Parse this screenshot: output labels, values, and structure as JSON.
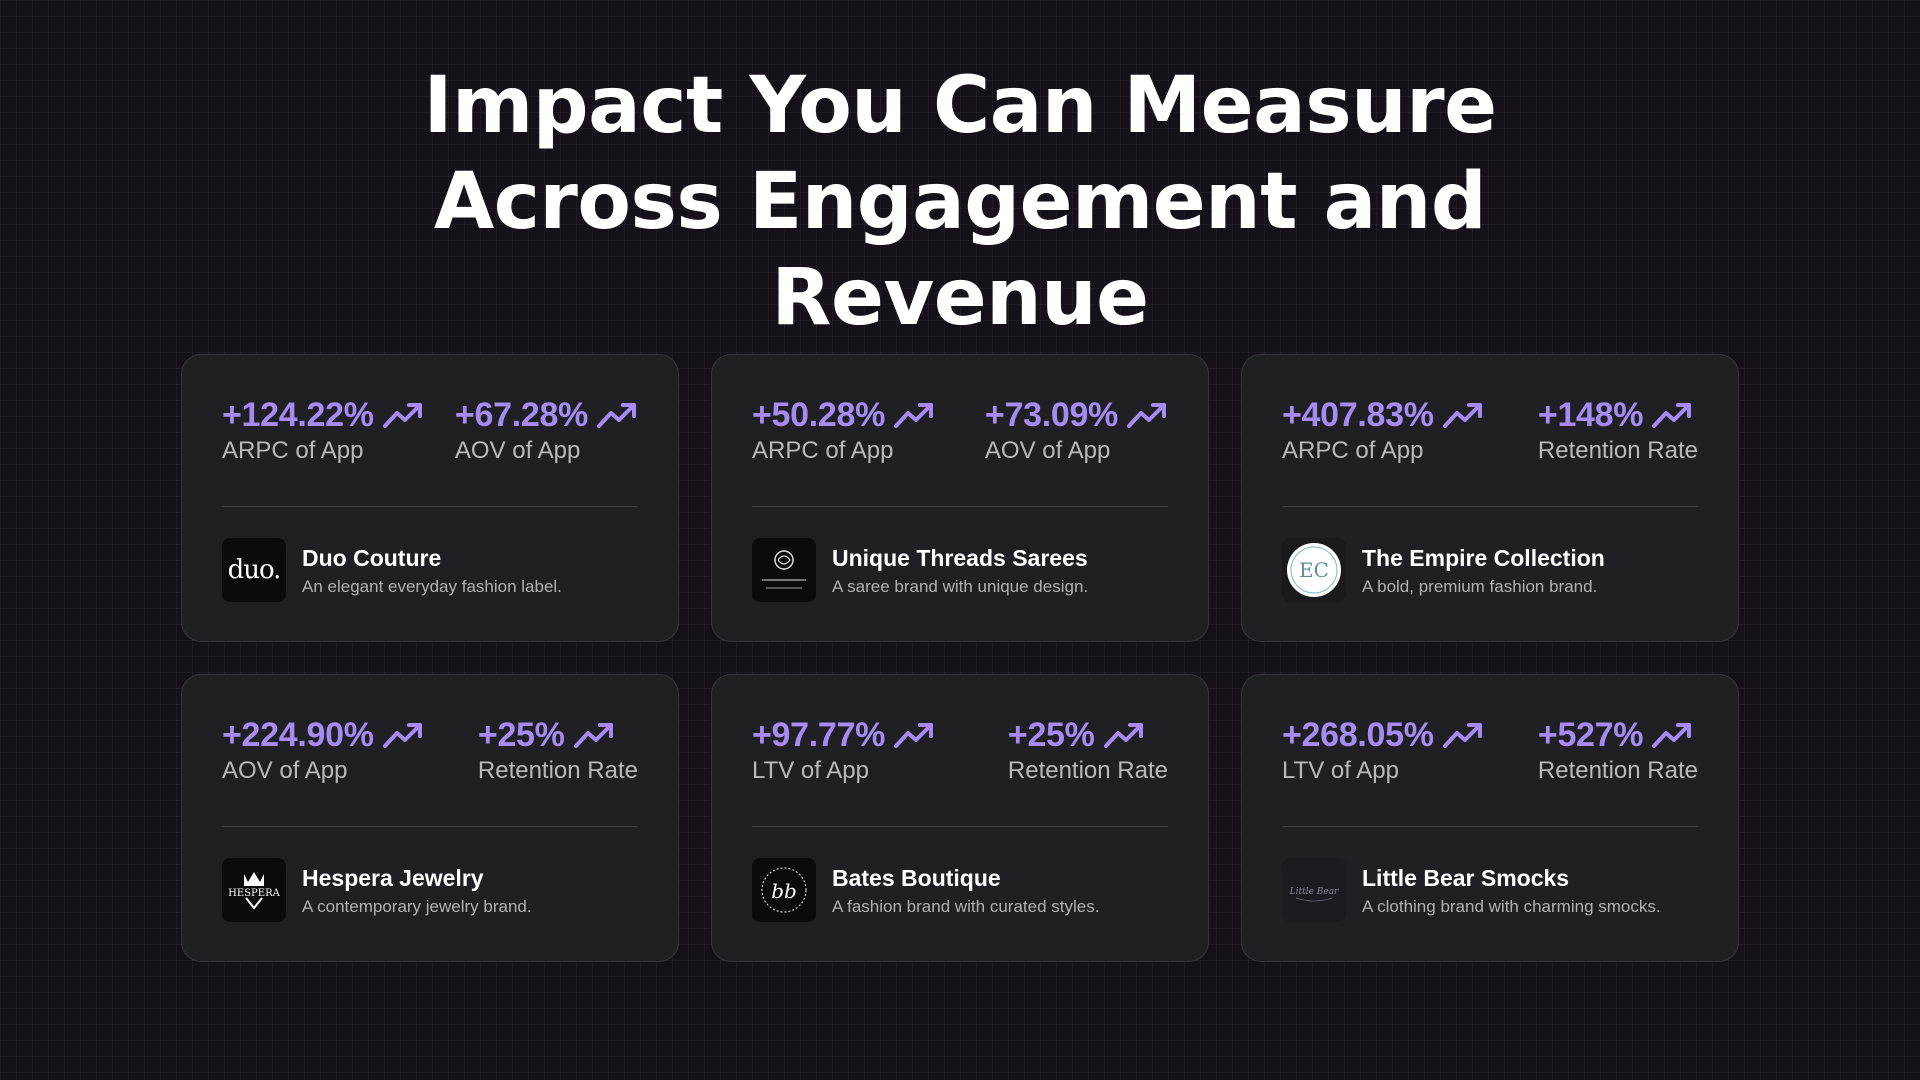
{
  "headline": {
    "line1": "Impact You Can Measure",
    "line2": "Across Engagement and",
    "line3": "Revenue"
  },
  "accent_color": "#a48cf3",
  "cards": [
    {
      "metrics": [
        {
          "value": "+124.22%",
          "label": "ARPC of App",
          "icon": "trend-up-icon"
        },
        {
          "value": "+67.28%",
          "label": "AOV of App",
          "icon": "trend-up-icon"
        }
      ],
      "brand": {
        "name": "Duo Couture",
        "description": "An elegant everyday fashion label.",
        "logo_text": "duo."
      }
    },
    {
      "metrics": [
        {
          "value": "+50.28%",
          "label": "ARPC of App",
          "icon": "trend-up-icon"
        },
        {
          "value": "+73.09%",
          "label": "AOV of App",
          "icon": "trend-up-icon"
        }
      ],
      "brand": {
        "name": "Unique Threads Sarees",
        "description": "A saree brand with unique design.",
        "logo_text": "Unique Threads"
      }
    },
    {
      "metrics": [
        {
          "value": "+407.83%",
          "label": "ARPC of App",
          "icon": "trend-up-icon"
        },
        {
          "value": "+148%",
          "label": "Retention Rate",
          "icon": "trend-up-icon"
        }
      ],
      "brand": {
        "name": "The Empire Collection",
        "description": "A bold, premium fashion brand.",
        "logo_text": "EC"
      }
    },
    {
      "metrics": [
        {
          "value": "+224.90%",
          "label": "AOV of App",
          "icon": "trend-up-icon"
        },
        {
          "value": "+25%",
          "label": "Retention Rate",
          "icon": "trend-up-icon"
        }
      ],
      "brand": {
        "name": "Hespera Jewelry",
        "description": "A contemporary jewelry brand.",
        "logo_text": "HESPERA"
      }
    },
    {
      "metrics": [
        {
          "value": "+97.77%",
          "label": "LTV of App",
          "icon": "trend-up-icon"
        },
        {
          "value": "+25%",
          "label": "Retention Rate",
          "icon": "trend-up-icon"
        }
      ],
      "brand": {
        "name": "Bates Boutique",
        "description": "A fashion brand with curated styles.",
        "logo_text": "bb"
      }
    },
    {
      "metrics": [
        {
          "value": "+268.05%",
          "label": "LTV of App",
          "icon": "trend-up-icon"
        },
        {
          "value": "+527%",
          "label": "Retention Rate",
          "icon": "trend-up-icon"
        }
      ],
      "brand": {
        "name": "Little Bear Smocks",
        "description": "A clothing brand with charming smocks.",
        "logo_text": "Little Bear"
      }
    }
  ]
}
